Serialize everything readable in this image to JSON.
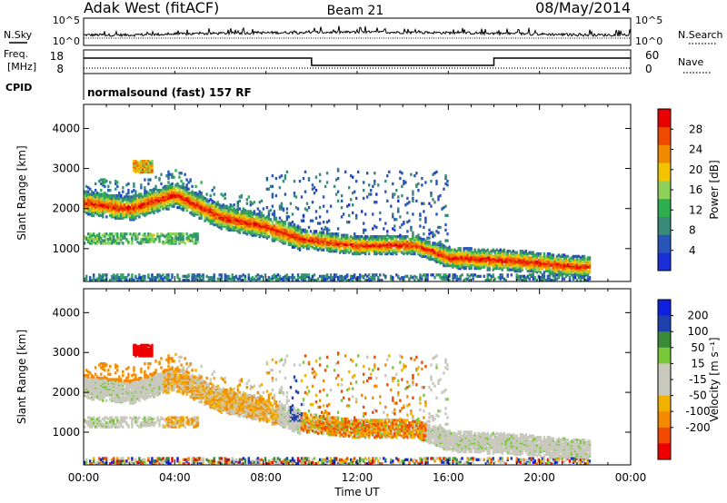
{
  "header": {
    "station": "Adak West (fitACF)",
    "beam": "Beam 21",
    "date": "08/May/2014"
  },
  "noise_panel": {
    "left_label": "N.Sky",
    "right_label": "N.Search",
    "left_ticks": [
      "10^5",
      "10^0"
    ],
    "right_ticks": [
      "10^5",
      "10^0"
    ]
  },
  "freq_panel": {
    "left_label_1": "Freq.",
    "left_label_2": "[MHz]",
    "left_ticks": [
      "18",
      "8"
    ],
    "right_label": "Nave",
    "right_ticks": [
      "60",
      "0"
    ],
    "cpid_label": "CPID",
    "cpid_text": "normalsound (fast) 157 RF"
  },
  "colors": {
    "power": [
      "#1a2fd8",
      "#2a55b8",
      "#3a8a7a",
      "#2fae50",
      "#8fd05a",
      "#f2c400",
      "#f08a00",
      "#ee4a00",
      "#e80000"
    ],
    "velocity": [
      "#ee0000",
      "#f24a00",
      "#f58a00",
      "#f2b000",
      "#c8c8bc",
      "#c8c8bc",
      "#78c83a",
      "#3a8a3a",
      "#2040b0",
      "#1020e0"
    ]
  },
  "chart_data": [
    {
      "type": "heatmap",
      "title": "",
      "xlabel": "",
      "ylabel": "Slant Range [km]",
      "xlim": [
        "00:00",
        "24:00"
      ],
      "ylim": [
        180,
        4600
      ],
      "x_ticks": [
        "00:00",
        "04:00",
        "08:00",
        "12:00",
        "16:00",
        "20:00",
        "00:00"
      ],
      "y_ticks": [
        "1000",
        "2000",
        "3000",
        "4000"
      ],
      "colorbar": {
        "label": "Power [dB]",
        "range": [
          0,
          32
        ],
        "ticks": [
          "4",
          "8",
          "12",
          "16",
          "20",
          "24",
          "28"
        ]
      },
      "echo_band_center_km": [
        {
          "time_h": 0.0,
          "range_km": 2150
        },
        {
          "time_h": 2.0,
          "range_km": 2000
        },
        {
          "time_h": 4.0,
          "range_km": 2350
        },
        {
          "time_h": 6.0,
          "range_km": 1800
        },
        {
          "time_h": 8.0,
          "range_km": 1550
        },
        {
          "time_h": 9.5,
          "range_km": 1250
        },
        {
          "time_h": 12.0,
          "range_km": 1080
        },
        {
          "time_h": 14.5,
          "range_km": 1100
        },
        {
          "time_h": 16.0,
          "range_km": 780
        },
        {
          "time_h": 19.0,
          "range_km": 700
        },
        {
          "time_h": 21.5,
          "range_km": 560
        }
      ]
    },
    {
      "type": "heatmap",
      "title": "",
      "xlabel": "Time UT",
      "ylabel": "Slant Range [km]",
      "xlim": [
        "00:00",
        "24:00"
      ],
      "ylim": [
        180,
        4600
      ],
      "x_ticks": [
        "00:00",
        "04:00",
        "08:00",
        "12:00",
        "16:00",
        "20:00",
        "00:00"
      ],
      "y_ticks": [
        "1000",
        "2000",
        "3000",
        "4000"
      ],
      "colorbar": {
        "label": "Velocity [m s⁻¹]",
        "ticks": [
          "200",
          "100",
          "50",
          "15",
          "-15",
          "-50",
          "-100",
          "-200"
        ]
      }
    }
  ]
}
